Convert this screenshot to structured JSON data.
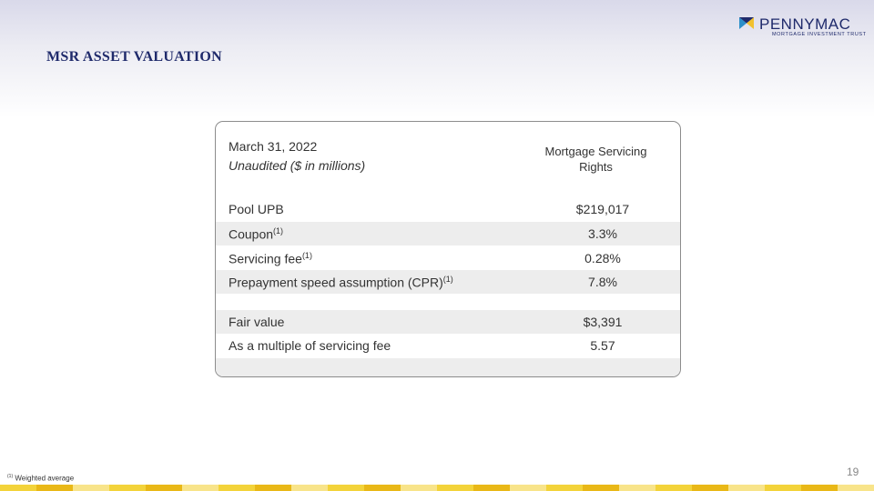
{
  "header": {
    "title": "MSR ASSET VALUATION",
    "logo_name": "PENNYMAC",
    "logo_tagline": "MORTGAGE INVESTMENT TRUST"
  },
  "table": {
    "date": "March 31, 2022",
    "subtitle": "Unaudited ($ in millions)",
    "column": "Mortgage Servicing Rights",
    "rows": [
      {
        "label": "Pool UPB",
        "value": "$219,017"
      },
      {
        "label": "Coupon",
        "note": "(1)",
        "value": "3.3%"
      },
      {
        "label": "Servicing fee",
        "note": "(1)",
        "value": "0.28%"
      },
      {
        "label": "Prepayment speed assumption (CPR)",
        "note": "(1)",
        "value": "7.8%"
      },
      {
        "label": "Fair value",
        "value": "$3,391"
      },
      {
        "label": "As a multiple of servicing fee",
        "value": "5.57"
      }
    ]
  },
  "footnote": {
    "marker": "(1)",
    "text": "Weighted average"
  },
  "page_number": "19"
}
